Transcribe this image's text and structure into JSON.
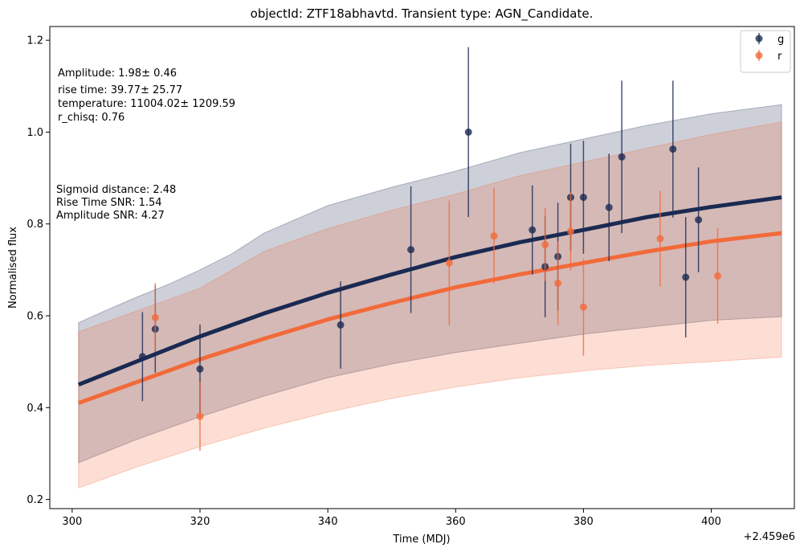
{
  "chart_data": {
    "type": "scatter",
    "title": "objectId: ZTF18abhavtd. Transient type: AGN_Candidate.",
    "xlabel": "Time (MDJ)",
    "ylabel": "Normalised flux",
    "x_offset_label": "+2.459e6",
    "xlim": [
      296.5,
      413
    ],
    "ylim": [
      0.18,
      1.23
    ],
    "xticks": [
      300,
      320,
      340,
      360,
      380,
      400
    ],
    "yticks": [
      0.2,
      0.4,
      0.6,
      0.8,
      1.0,
      1.2
    ],
    "ytick_labels": [
      "0.2",
      "0.4",
      "0.6",
      "0.8",
      "1.0",
      "1.2"
    ],
    "legend_position": "top-right",
    "series": [
      {
        "name": "g",
        "color": "#1a2a52",
        "points": [
          {
            "x": 311,
            "y": 0.511,
            "err": 0.097
          },
          {
            "x": 313,
            "y": 0.571,
            "err": 0.095
          },
          {
            "x": 320,
            "y": 0.484,
            "err": 0.097
          },
          {
            "x": 342,
            "y": 0.58,
            "err": 0.095
          },
          {
            "x": 353,
            "y": 0.744,
            "err": 0.138
          },
          {
            "x": 362,
            "y": 1.0,
            "err": 0.185
          },
          {
            "x": 372,
            "y": 0.787,
            "err": 0.097
          },
          {
            "x": 374,
            "y": 0.707,
            "err": 0.11
          },
          {
            "x": 376,
            "y": 0.729,
            "err": 0.117
          },
          {
            "x": 378,
            "y": 0.858,
            "err": 0.117
          },
          {
            "x": 380,
            "y": 0.858,
            "err": 0.123
          },
          {
            "x": 384,
            "y": 0.836,
            "err": 0.117
          },
          {
            "x": 386,
            "y": 0.946,
            "err": 0.166
          },
          {
            "x": 394,
            "y": 0.963,
            "err": 0.149
          },
          {
            "x": 396,
            "y": 0.684,
            "err": 0.131
          },
          {
            "x": 398,
            "y": 0.809,
            "err": 0.114
          }
        ],
        "model": [
          {
            "x": 301,
            "y": 0.45
          },
          {
            "x": 310,
            "y": 0.5
          },
          {
            "x": 320,
            "y": 0.555
          },
          {
            "x": 330,
            "y": 0.605
          },
          {
            "x": 340,
            "y": 0.65
          },
          {
            "x": 350,
            "y": 0.69
          },
          {
            "x": 360,
            "y": 0.728
          },
          {
            "x": 370,
            "y": 0.76
          },
          {
            "x": 380,
            "y": 0.787
          },
          {
            "x": 390,
            "y": 0.815
          },
          {
            "x": 400,
            "y": 0.837
          },
          {
            "x": 411,
            "y": 0.858
          }
        ],
        "band_upper": [
          {
            "x": 301,
            "y": 0.585
          },
          {
            "x": 305,
            "y": 0.61
          },
          {
            "x": 310,
            "y": 0.64
          },
          {
            "x": 315,
            "y": 0.668
          },
          {
            "x": 320,
            "y": 0.7
          },
          {
            "x": 325,
            "y": 0.735
          },
          {
            "x": 330,
            "y": 0.78
          },
          {
            "x": 335,
            "y": 0.81
          },
          {
            "x": 340,
            "y": 0.84
          },
          {
            "x": 350,
            "y": 0.88
          },
          {
            "x": 360,
            "y": 0.915
          },
          {
            "x": 370,
            "y": 0.955
          },
          {
            "x": 380,
            "y": 0.985
          },
          {
            "x": 390,
            "y": 1.015
          },
          {
            "x": 400,
            "y": 1.04
          },
          {
            "x": 411,
            "y": 1.06
          }
        ],
        "band_lower": [
          {
            "x": 301,
            "y": 0.28
          },
          {
            "x": 310,
            "y": 0.33
          },
          {
            "x": 320,
            "y": 0.38
          },
          {
            "x": 330,
            "y": 0.425
          },
          {
            "x": 340,
            "y": 0.465
          },
          {
            "x": 350,
            "y": 0.495
          },
          {
            "x": 360,
            "y": 0.52
          },
          {
            "x": 370,
            "y": 0.54
          },
          {
            "x": 380,
            "y": 0.56
          },
          {
            "x": 390,
            "y": 0.575
          },
          {
            "x": 400,
            "y": 0.59
          },
          {
            "x": 411,
            "y": 0.598
          }
        ]
      },
      {
        "name": "r",
        "color": "#f26a3a",
        "points": [
          {
            "x": 313,
            "y": 0.596,
            "err": 0.075
          },
          {
            "x": 320,
            "y": 0.381,
            "err": 0.075
          },
          {
            "x": 359,
            "y": 0.715,
            "err": 0.136
          },
          {
            "x": 366,
            "y": 0.774,
            "err": 0.104
          },
          {
            "x": 374,
            "y": 0.755,
            "err": 0.079
          },
          {
            "x": 376,
            "y": 0.671,
            "err": 0.091
          },
          {
            "x": 378,
            "y": 0.784,
            "err": 0.085
          },
          {
            "x": 380,
            "y": 0.619,
            "err": 0.106
          },
          {
            "x": 392,
            "y": 0.768,
            "err": 0.104
          },
          {
            "x": 401,
            "y": 0.687,
            "err": 0.104
          }
        ],
        "model": [
          {
            "x": 301,
            "y": 0.41
          },
          {
            "x": 310,
            "y": 0.455
          },
          {
            "x": 320,
            "y": 0.505
          },
          {
            "x": 330,
            "y": 0.55
          },
          {
            "x": 340,
            "y": 0.592
          },
          {
            "x": 350,
            "y": 0.628
          },
          {
            "x": 360,
            "y": 0.662
          },
          {
            "x": 370,
            "y": 0.69
          },
          {
            "x": 380,
            "y": 0.715
          },
          {
            "x": 390,
            "y": 0.74
          },
          {
            "x": 400,
            "y": 0.762
          },
          {
            "x": 411,
            "y": 0.78
          }
        ],
        "band_upper": [
          {
            "x": 301,
            "y": 0.565
          },
          {
            "x": 310,
            "y": 0.61
          },
          {
            "x": 320,
            "y": 0.66
          },
          {
            "x": 330,
            "y": 0.74
          },
          {
            "x": 340,
            "y": 0.79
          },
          {
            "x": 350,
            "y": 0.83
          },
          {
            "x": 360,
            "y": 0.865
          },
          {
            "x": 370,
            "y": 0.905
          },
          {
            "x": 380,
            "y": 0.935
          },
          {
            "x": 390,
            "y": 0.965
          },
          {
            "x": 400,
            "y": 0.995
          },
          {
            "x": 411,
            "y": 1.022
          }
        ],
        "band_lower": [
          {
            "x": 301,
            "y": 0.225
          },
          {
            "x": 310,
            "y": 0.27
          },
          {
            "x": 320,
            "y": 0.315
          },
          {
            "x": 330,
            "y": 0.355
          },
          {
            "x": 340,
            "y": 0.39
          },
          {
            "x": 350,
            "y": 0.42
          },
          {
            "x": 360,
            "y": 0.445
          },
          {
            "x": 370,
            "y": 0.465
          },
          {
            "x": 380,
            "y": 0.48
          },
          {
            "x": 390,
            "y": 0.492
          },
          {
            "x": 400,
            "y": 0.5
          },
          {
            "x": 411,
            "y": 0.51
          }
        ]
      }
    ],
    "annotations": {
      "fit_params": [
        "Amplitude: 1.98± 0.46",
        "rise time: 39.77± 25.77",
        "temperature: 11004.02± 1209.59",
        "r_chisq: 0.76"
      ],
      "features": [
        "Sigmoid distance: 2.48",
        "Rise Time SNR: 1.54",
        "Amplitude SNR: 4.27"
      ]
    }
  }
}
